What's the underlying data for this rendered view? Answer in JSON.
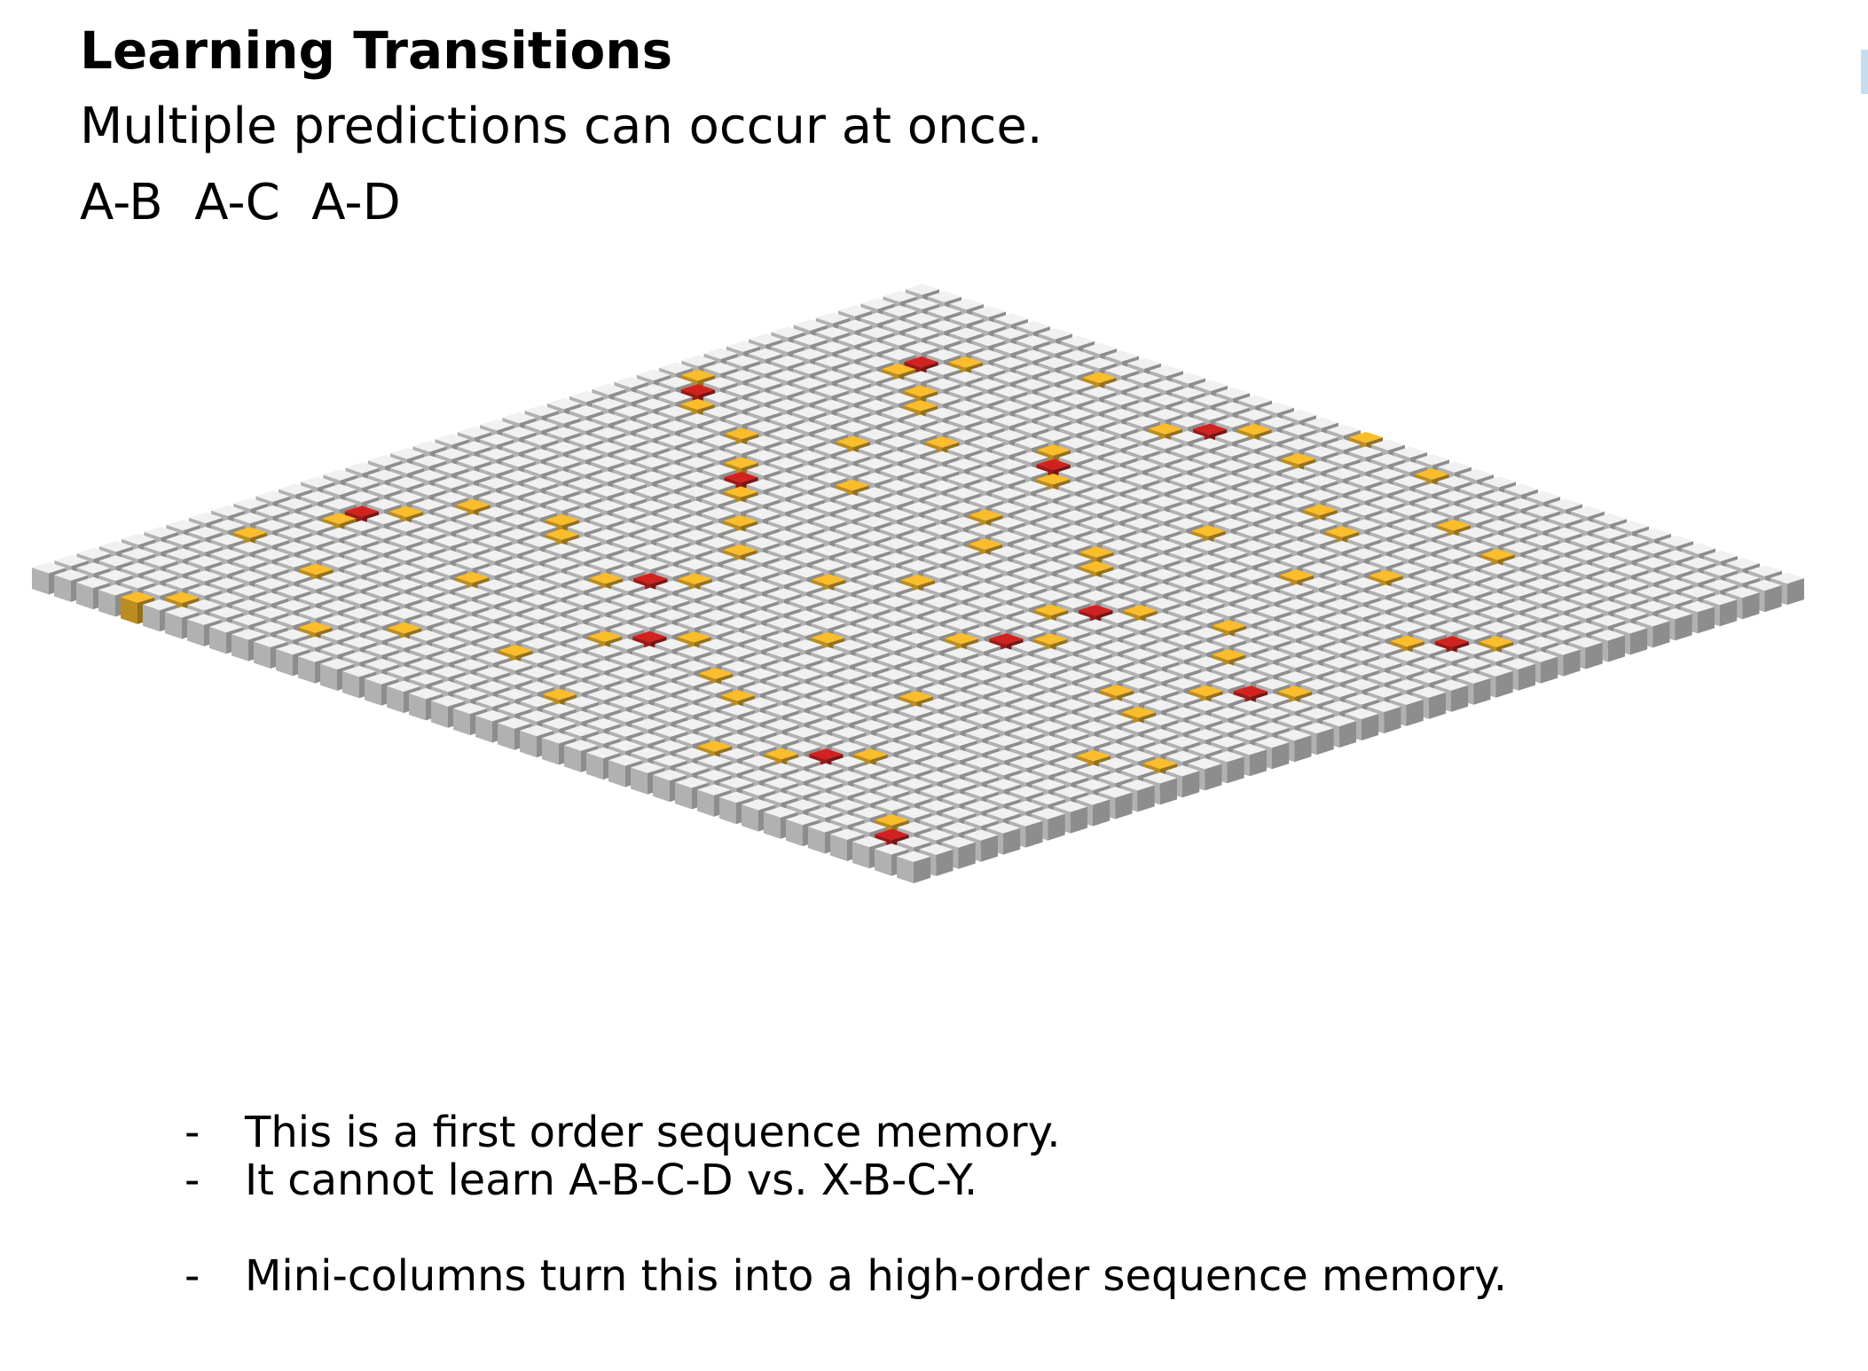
{
  "slide": {
    "title": "Learning Transitions",
    "subtitle": "Multiple predictions can occur at once.",
    "transitions": "A-B  A-C  A-D"
  },
  "bullets": [
    {
      "marker": "-",
      "text": "This is a first order sequence memory."
    },
    {
      "marker": "-",
      "text": "It cannot learn A-B-C-D vs. X-B-C-Y."
    },
    {
      "marker": "-",
      "text": "Mini-columns turn this into a high-order sequence memory."
    }
  ],
  "grid": {
    "rows": 40,
    "cols": 40,
    "colors": {
      "inactive": "#e3e3e3",
      "predicted": "#f0b429",
      "active": "#c8201e"
    },
    "active_cells": [
      [
        5,
        5
      ],
      [
        12,
        2
      ],
      [
        28,
        3
      ],
      [
        9,
        15
      ],
      [
        17,
        9
      ],
      [
        22,
        26
      ],
      [
        20,
        35
      ],
      [
        30,
        18
      ],
      [
        34,
        30
      ],
      [
        12,
        36
      ],
      [
        3,
        16
      ],
      [
        26,
        14
      ],
      [
        38,
        37
      ],
      [
        18,
        26
      ]
    ],
    "predicted_cells": [
      [
        4,
        6
      ],
      [
        6,
        5
      ],
      [
        13,
        3
      ],
      [
        11,
        1
      ],
      [
        27,
        4
      ],
      [
        29,
        3
      ],
      [
        8,
        14
      ],
      [
        10,
        16
      ],
      [
        16,
        8
      ],
      [
        18,
        10
      ],
      [
        21,
        27
      ],
      [
        23,
        25
      ],
      [
        21,
        34
      ],
      [
        19,
        36
      ],
      [
        31,
        17
      ],
      [
        29,
        19
      ],
      [
        33,
        31
      ],
      [
        35,
        29
      ],
      [
        13,
        35
      ],
      [
        11,
        37
      ],
      [
        2,
        17
      ],
      [
        4,
        15
      ],
      [
        25,
        15
      ],
      [
        27,
        13
      ],
      [
        37,
        36
      ],
      [
        17,
        27
      ],
      [
        19,
        25
      ],
      [
        7,
        7
      ],
      [
        8,
        8
      ],
      [
        14,
        6
      ],
      [
        15,
        12
      ],
      [
        20,
        20
      ],
      [
        22,
        18
      ],
      [
        24,
        8
      ],
      [
        25,
        9
      ],
      [
        30,
        10
      ],
      [
        31,
        22
      ],
      [
        32,
        24
      ],
      [
        33,
        6
      ],
      [
        35,
        12
      ],
      [
        36,
        20
      ],
      [
        36,
        27
      ],
      [
        14,
        22
      ],
      [
        15,
        23
      ],
      [
        16,
        30
      ],
      [
        18,
        32
      ],
      [
        23,
        32
      ],
      [
        24,
        34
      ],
      [
        26,
        22
      ],
      [
        28,
        28
      ],
      [
        10,
        23
      ],
      [
        11,
        28
      ],
      [
        9,
        30
      ],
      [
        6,
        24
      ],
      [
        7,
        26
      ],
      [
        4,
        28
      ],
      [
        5,
        31
      ],
      [
        27,
        38
      ],
      [
        28,
        36
      ],
      [
        14,
        17
      ],
      [
        16,
        19
      ],
      [
        20,
        12
      ],
      [
        22,
        14
      ],
      [
        2,
        10
      ],
      [
        3,
        20
      ],
      [
        38,
        5
      ],
      [
        39,
        4
      ],
      [
        37,
        10
      ],
      [
        34,
        16
      ],
      [
        32,
        2
      ],
      [
        10,
        11
      ],
      [
        12,
        9
      ],
      [
        25,
        5
      ],
      [
        1,
        24
      ],
      [
        0,
        20
      ]
    ]
  }
}
